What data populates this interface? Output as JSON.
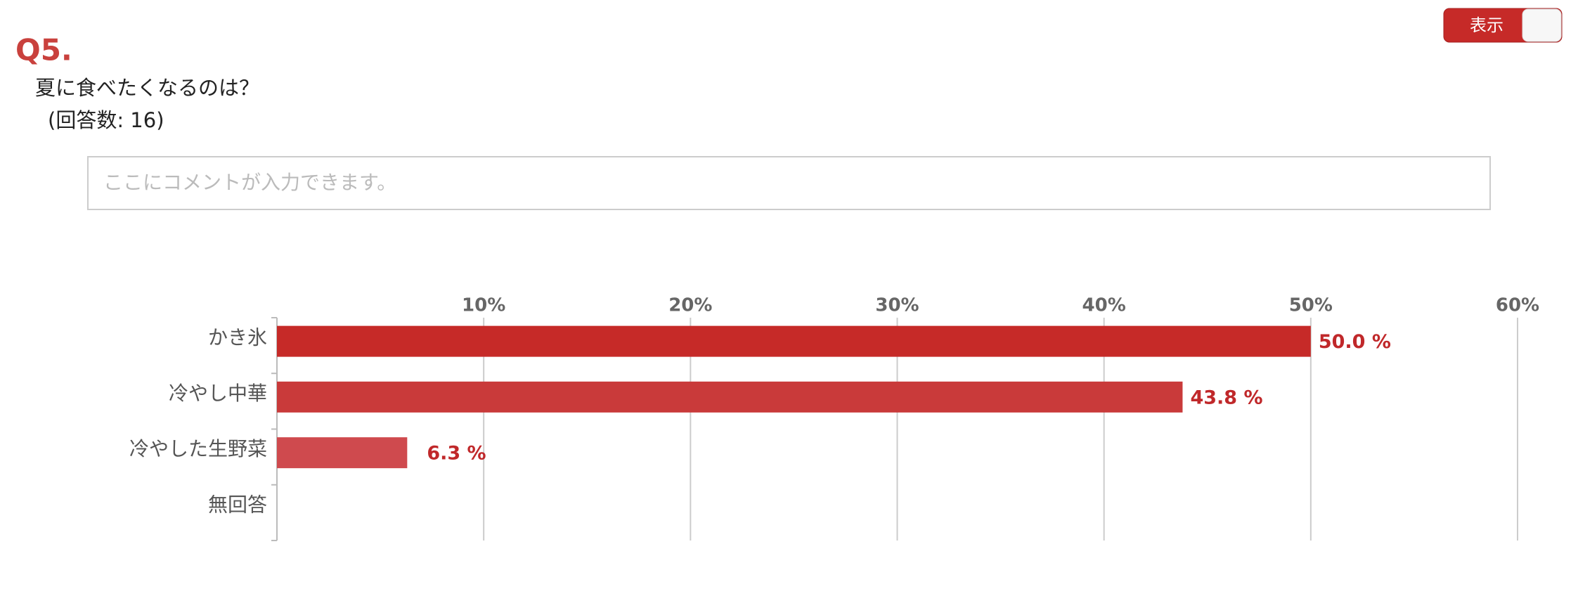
{
  "header": {
    "number": "Q5.",
    "question": "夏に食べたくなるのは？",
    "count": "(回答数: 16)",
    "toggle": "表示"
  },
  "comment": {
    "placeholder": "ここにコメントが入力できます。"
  },
  "chart_data": {
    "type": "hbar",
    "categories": [
      "かき氷",
      "冷やし中華",
      "冷やした生野菜",
      "無回答"
    ],
    "values": [
      50.0,
      43.8,
      6.3,
      0
    ],
    "value_labels": [
      "50.0 %",
      "43.8 %",
      "6.3 %",
      null
    ],
    "colors": [
      "#c62a28",
      "#c93a3a",
      "#cf4a4e",
      "#cf4a4e"
    ],
    "xlim": [
      0,
      60
    ],
    "xticks": [
      {
        "value": 10,
        "label": "10%"
      },
      {
        "value": 20,
        "label": "20%"
      },
      {
        "value": 30,
        "label": "30%"
      },
      {
        "value": 40,
        "label": "40%"
      },
      {
        "value": 50,
        "label": "50%"
      },
      {
        "value": 60,
        "label": "60%"
      }
    ],
    "grid": true
  }
}
